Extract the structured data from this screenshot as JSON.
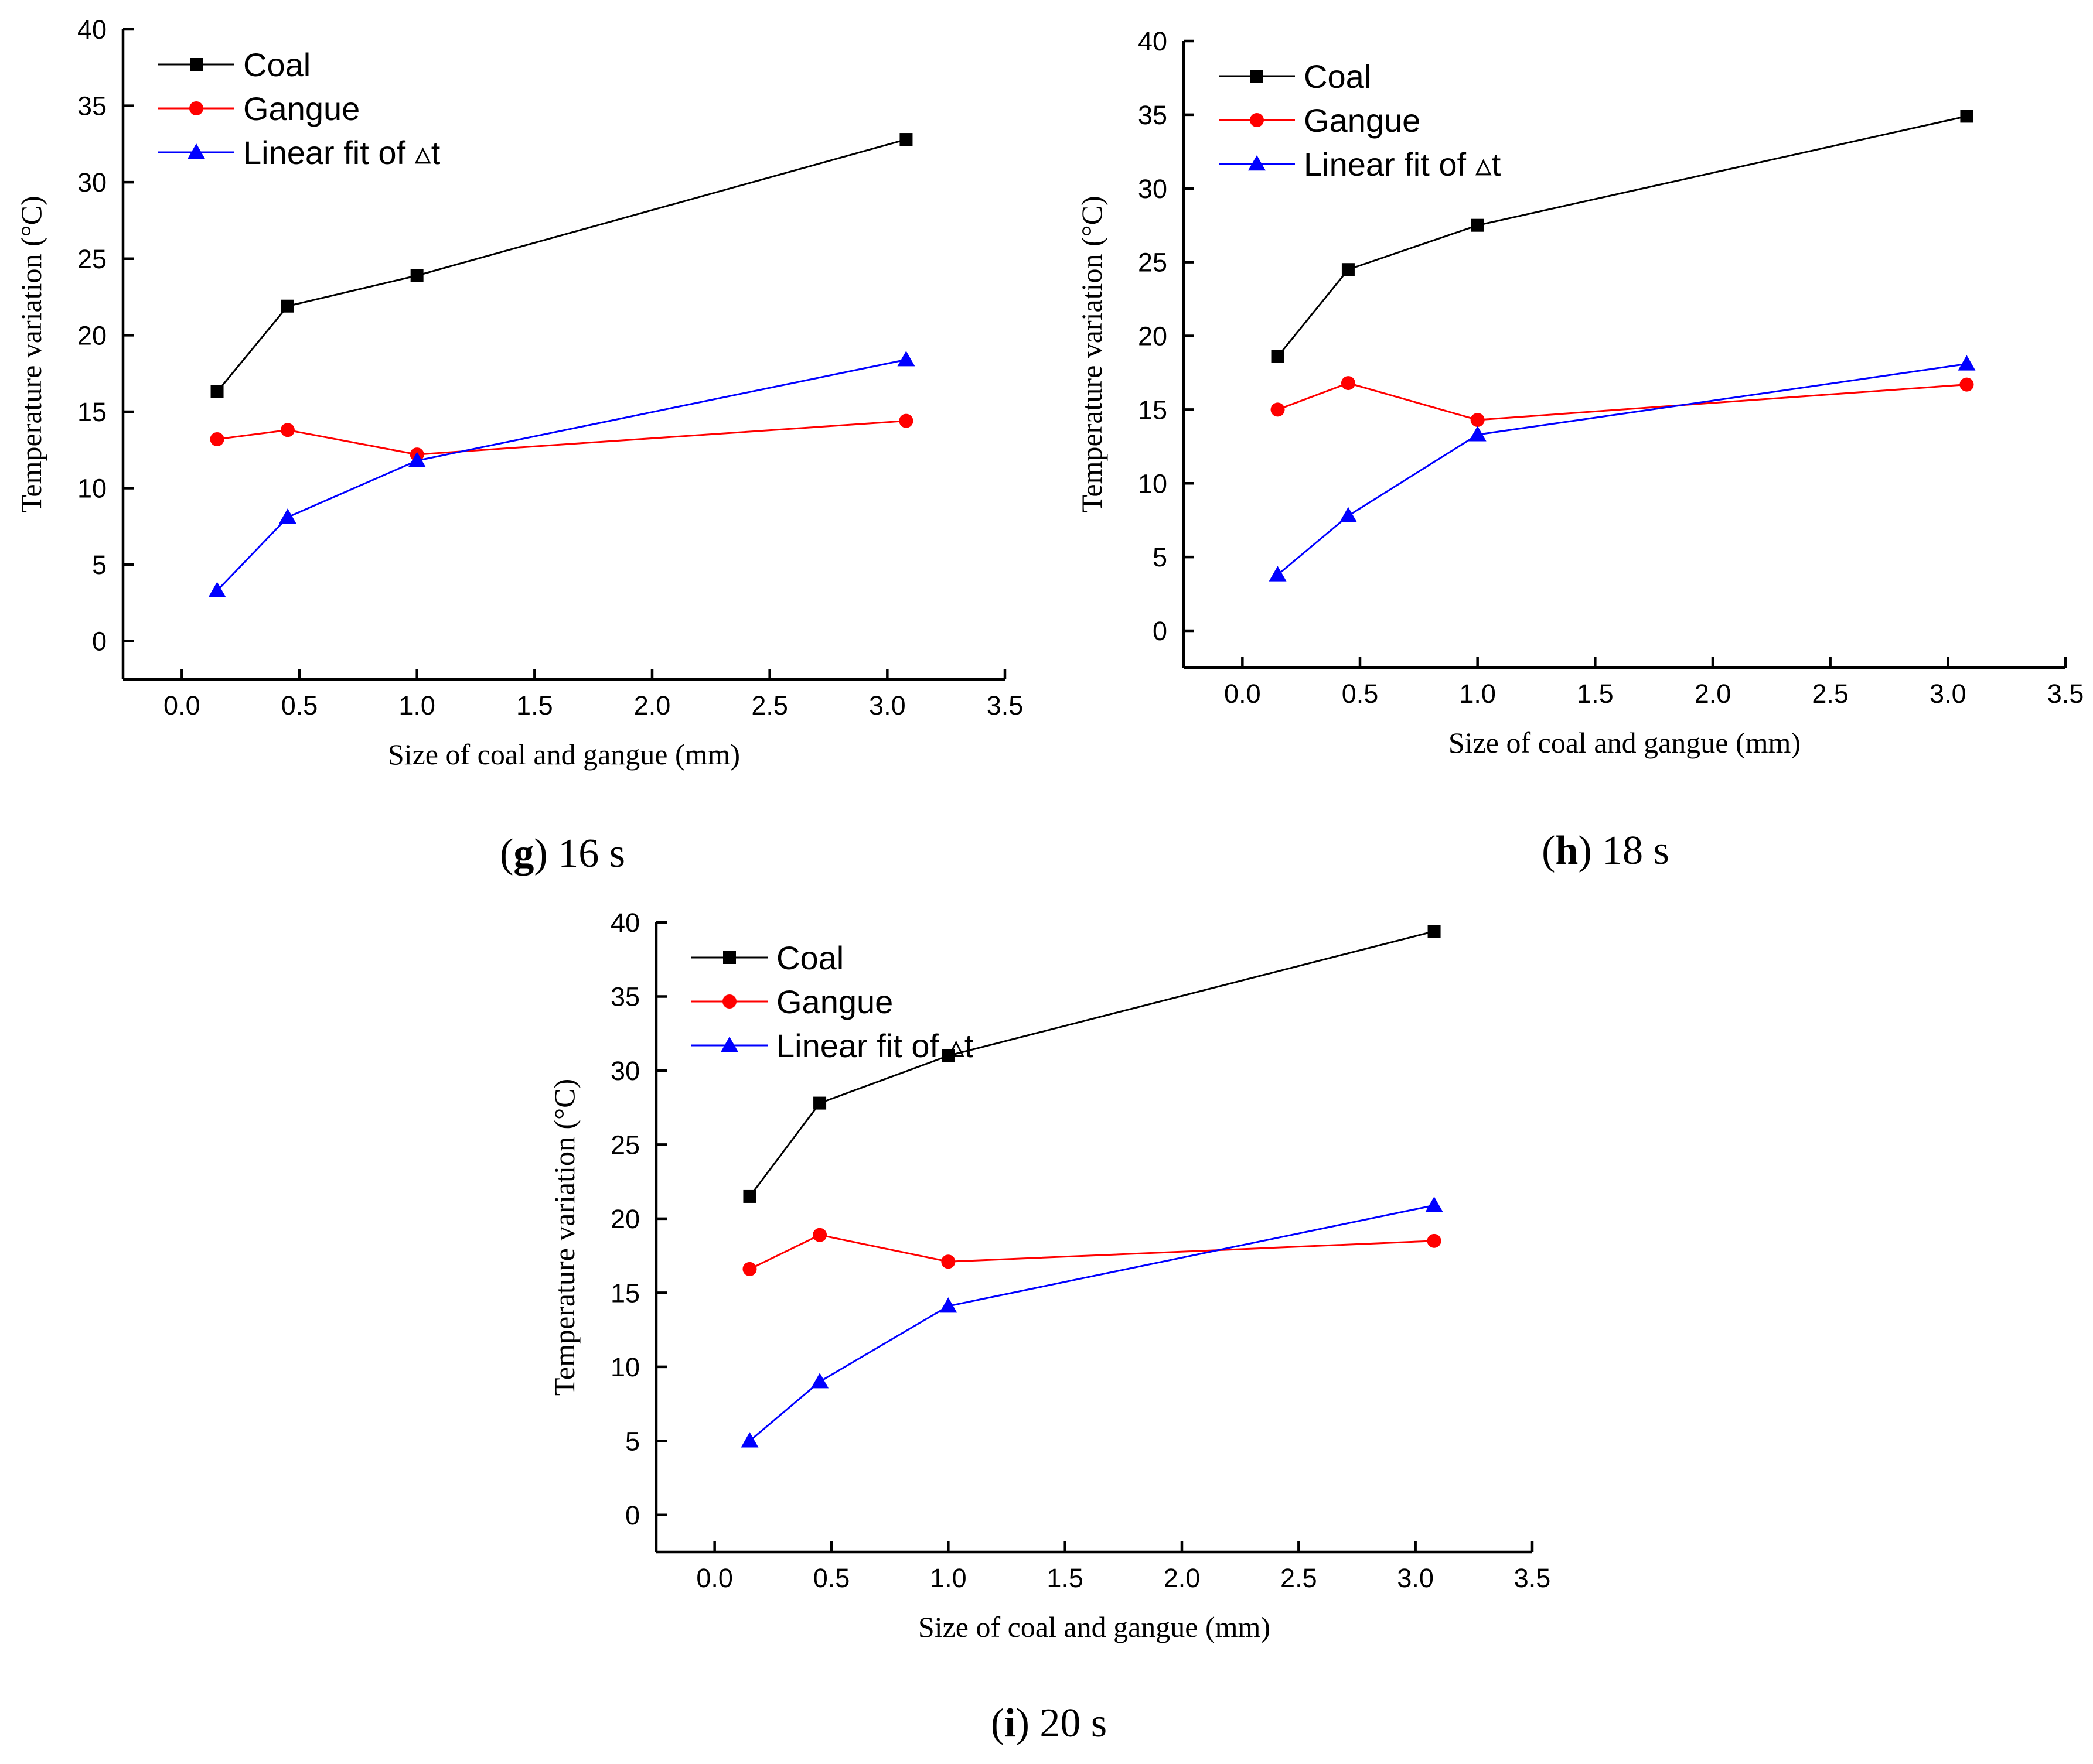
{
  "chart_data": [
    {
      "type": "line",
      "caption_letter": "g",
      "caption_text": "16 s",
      "xlabel": "Size of coal and gangue (mm)",
      "ylabel": "Temperature variation (°C)",
      "xlim": [
        -0.25,
        3.5
      ],
      "ylim": [
        -2.5,
        40
      ],
      "xticks": [
        "0.0",
        "0.5",
        "1.0",
        "1.5",
        "2.0",
        "2.5",
        "3.0",
        "3.5"
      ],
      "yticks": [
        "0",
        "5",
        "10",
        "15",
        "20",
        "25",
        "30",
        "35",
        "40"
      ],
      "x": [
        0.15,
        0.45,
        1.0,
        3.08
      ],
      "series": [
        {
          "name": "Coal",
          "color": "#000000",
          "marker": "square",
          "values": [
            16.3,
            21.9,
            23.9,
            32.8
          ]
        },
        {
          "name": "Gangue",
          "color": "#ff0000",
          "marker": "circle",
          "values": [
            13.2,
            13.8,
            12.2,
            14.4
          ]
        },
        {
          "name": "Linear fit of ▵t",
          "color": "#0000ff",
          "marker": "triangle",
          "values": [
            3.3,
            8.1,
            11.8,
            18.4
          ]
        }
      ]
    },
    {
      "type": "line",
      "caption_letter": "h",
      "caption_text": "18 s",
      "xlabel": "Size of coal and gangue (mm)",
      "ylabel": "Temperature variation (°C)",
      "xlim": [
        -0.25,
        3.5
      ],
      "ylim": [
        -2.5,
        40
      ],
      "xticks": [
        "0.0",
        "0.5",
        "1.0",
        "1.5",
        "2.0",
        "2.5",
        "3.0",
        "3.5"
      ],
      "yticks": [
        "0",
        "5",
        "10",
        "15",
        "20",
        "25",
        "30",
        "35",
        "40"
      ],
      "x": [
        0.15,
        0.45,
        1.0,
        3.08
      ],
      "series": [
        {
          "name": "Coal",
          "color": "#000000",
          "marker": "square",
          "values": [
            18.6,
            24.5,
            27.5,
            34.9
          ]
        },
        {
          "name": "Gangue",
          "color": "#ff0000",
          "marker": "circle",
          "values": [
            15.0,
            16.8,
            14.3,
            16.7
          ]
        },
        {
          "name": "Linear fit of ▵t",
          "color": "#0000ff",
          "marker": "triangle",
          "values": [
            3.8,
            7.8,
            13.3,
            18.1
          ]
        }
      ]
    },
    {
      "type": "line",
      "caption_letter": "i",
      "caption_text": "20 s",
      "xlabel": "Size of coal and gangue (mm)",
      "ylabel": "Temperature variation (°C)",
      "xlim": [
        -0.25,
        3.5
      ],
      "ylim": [
        -2.5,
        40
      ],
      "xticks": [
        "0.0",
        "0.5",
        "1.0",
        "1.5",
        "2.0",
        "2.5",
        "3.0",
        "3.5"
      ],
      "yticks": [
        "0",
        "5",
        "10",
        "15",
        "20",
        "25",
        "30",
        "35",
        "40"
      ],
      "x": [
        0.15,
        0.45,
        1.0,
        3.08
      ],
      "series": [
        {
          "name": "Coal",
          "color": "#000000",
          "marker": "square",
          "values": [
            21.5,
            27.8,
            31.0,
            39.4
          ]
        },
        {
          "name": "Gangue",
          "color": "#ff0000",
          "marker": "circle",
          "values": [
            16.6,
            18.9,
            17.1,
            18.5
          ]
        },
        {
          "name": "Linear fit of ▵t",
          "color": "#0000ff",
          "marker": "triangle",
          "values": [
            5.0,
            9.0,
            14.1,
            20.9
          ]
        }
      ]
    }
  ]
}
